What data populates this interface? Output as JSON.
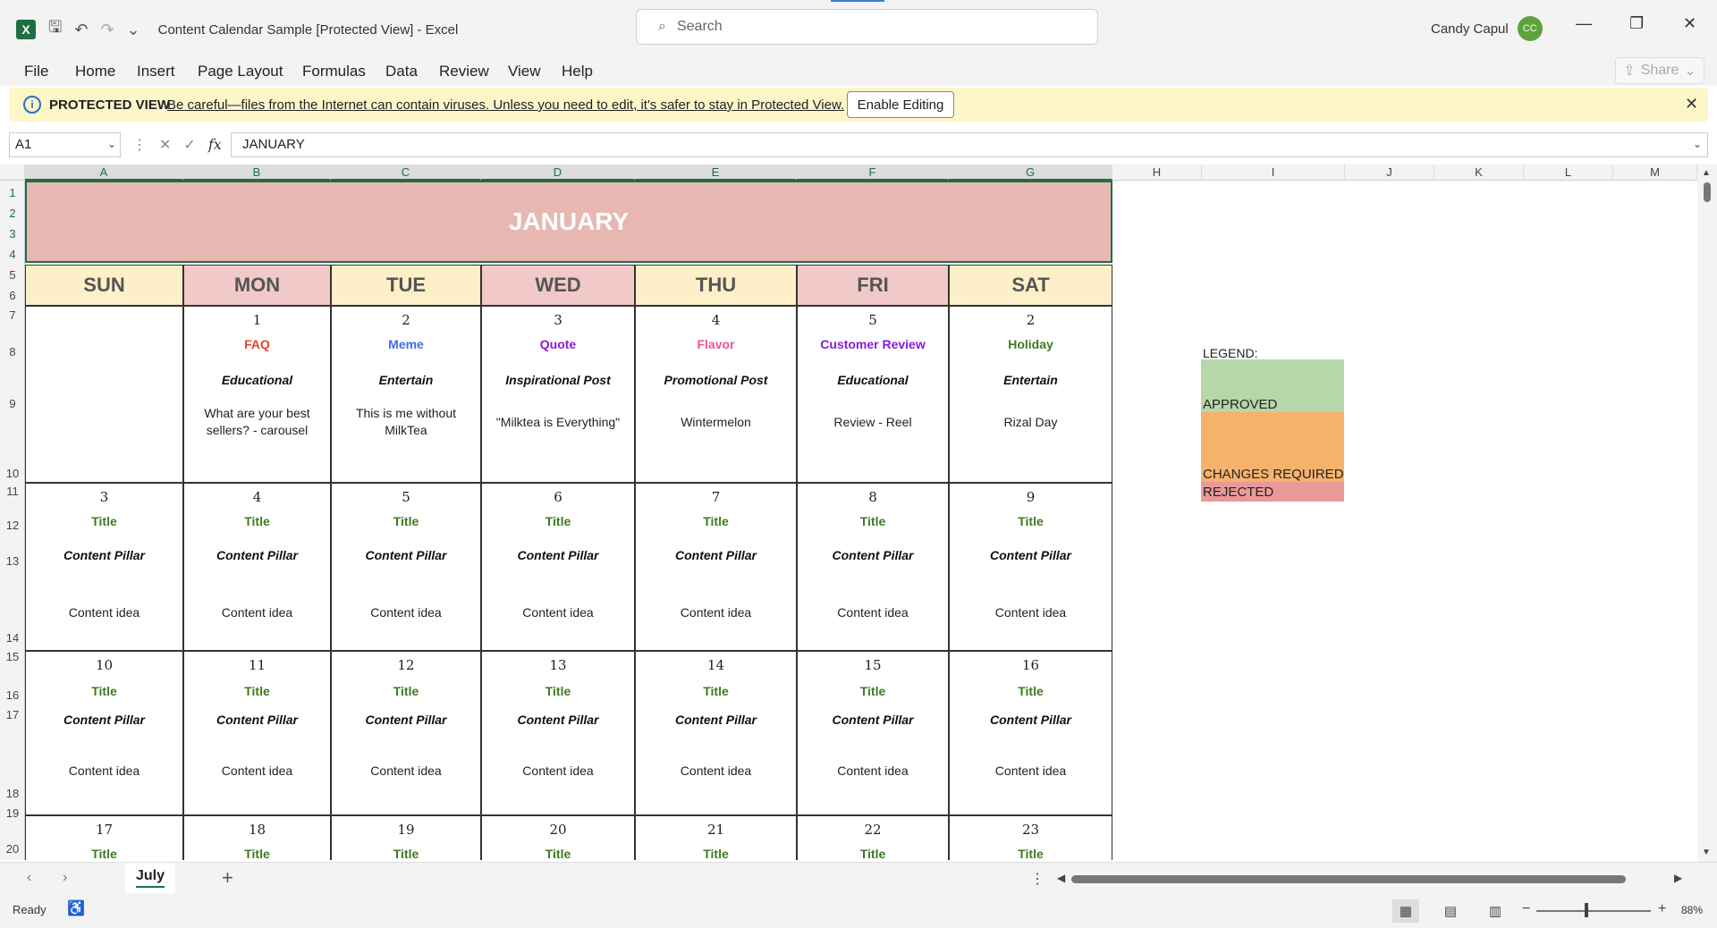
{
  "app": {
    "doc_title": "Content Calendar Sample  [Protected View]  -  Excel",
    "search_placeholder": "Search",
    "user_name": "Candy Capul",
    "user_initials": "CC"
  },
  "menu": {
    "items": [
      "File",
      "Home",
      "Insert",
      "Page Layout",
      "Formulas",
      "Data",
      "Review",
      "View",
      "Help"
    ],
    "share_label": "Share"
  },
  "protected_view": {
    "label": "PROTECTED VIEW",
    "message": "Be careful—files from the Internet can contain viruses. Unless you need to edit, it's safer to stay in Protected View.",
    "enable_label": "Enable Editing"
  },
  "formula_bar": {
    "name_box": "A1",
    "fx_label": "fx",
    "value": "JANUARY"
  },
  "columns": [
    "A",
    "B",
    "C",
    "D",
    "E",
    "F",
    "G",
    "H",
    "I",
    "J",
    "K",
    "L",
    "M"
  ],
  "rows": [
    "1",
    "2",
    "3",
    "4",
    "5",
    "6",
    "7",
    "8",
    "9",
    "10",
    "11",
    "12",
    "13",
    "14",
    "15",
    "16",
    "17",
    "18",
    "19",
    "20"
  ],
  "calendar": {
    "month": "JANUARY",
    "days": [
      "SUN",
      "MON",
      "TUE",
      "WED",
      "THU",
      "FRI",
      "SAT"
    ],
    "weeks": [
      [
        {
          "num": "",
          "title": "",
          "pillar": "",
          "idea": ""
        },
        {
          "num": "1",
          "title": "FAQ",
          "pillar": "Educational",
          "idea": "What are your best sellers? - carousel"
        },
        {
          "num": "2",
          "title": "Meme",
          "pillar": "Entertain",
          "idea": "This is me without MilkTea"
        },
        {
          "num": "3",
          "title": "Quote",
          "pillar": "Inspirational Post",
          "idea": "\"Milktea is Everything\""
        },
        {
          "num": "4",
          "title": "Flavor",
          "pillar": "Promotional Post",
          "idea": "Wintermelon"
        },
        {
          "num": "5",
          "title": "Customer Review",
          "pillar": "Educational",
          "idea": "Review - Reel"
        },
        {
          "num": "2",
          "title": "Holiday",
          "pillar": "Entertain",
          "idea": "Rizal Day"
        }
      ],
      [
        {
          "num": "3",
          "title": "Title",
          "pillar": "Content Pillar",
          "idea": "Content idea"
        },
        {
          "num": "4",
          "title": "Title",
          "pillar": "Content Pillar",
          "idea": "Content idea"
        },
        {
          "num": "5",
          "title": "Title",
          "pillar": "Content Pillar",
          "idea": "Content idea"
        },
        {
          "num": "6",
          "title": "Title",
          "pillar": "Content Pillar",
          "idea": "Content idea"
        },
        {
          "num": "7",
          "title": "Title",
          "pillar": "Content Pillar",
          "idea": "Content idea"
        },
        {
          "num": "8",
          "title": "Title",
          "pillar": "Content Pillar",
          "idea": "Content idea"
        },
        {
          "num": "9",
          "title": "Title",
          "pillar": "Content Pillar",
          "idea": "Content idea"
        }
      ],
      [
        {
          "num": "10",
          "title": "Title",
          "pillar": "Content Pillar",
          "idea": "Content idea"
        },
        {
          "num": "11",
          "title": "Title",
          "pillar": "Content Pillar",
          "idea": "Content idea"
        },
        {
          "num": "12",
          "title": "Title",
          "pillar": "Content Pillar",
          "idea": "Content idea"
        },
        {
          "num": "13",
          "title": "Title",
          "pillar": "Content Pillar",
          "idea": "Content idea"
        },
        {
          "num": "14",
          "title": "Title",
          "pillar": "Content Pillar",
          "idea": "Content idea"
        },
        {
          "num": "15",
          "title": "Title",
          "pillar": "Content Pillar",
          "idea": "Content idea"
        },
        {
          "num": "16",
          "title": "Title",
          "pillar": "Content Pillar",
          "idea": "Content idea"
        }
      ],
      [
        {
          "num": "17",
          "title": "Title",
          "pillar": "",
          "idea": ""
        },
        {
          "num": "18",
          "title": "Title",
          "pillar": "",
          "idea": ""
        },
        {
          "num": "19",
          "title": "Title",
          "pillar": "",
          "idea": ""
        },
        {
          "num": "20",
          "title": "Title",
          "pillar": "",
          "idea": ""
        },
        {
          "num": "21",
          "title": "Title",
          "pillar": "",
          "idea": ""
        },
        {
          "num": "22",
          "title": "Title",
          "pillar": "",
          "idea": ""
        },
        {
          "num": "23",
          "title": "Title",
          "pillar": "",
          "idea": ""
        }
      ]
    ]
  },
  "colors": {
    "banner": "#e6b8b1",
    "day_header_light": "#fdf0c8",
    "day_header_pink": "#f2c9c9",
    "week1_titles": [
      "#000000",
      "#e8412c",
      "#3b6fe0",
      "#8a1ae0",
      "#e8559b",
      "#8a1ae0",
      "#3f7a1f"
    ],
    "default_title": "#3f7a1f",
    "approved": "#b6d7a8",
    "changes_required": "#f6b26b",
    "rejected": "#ea9999"
  },
  "legend": {
    "label": "LEGEND:",
    "items": [
      "APPROVED",
      "CHANGES REQUIRED",
      "REJECTED"
    ]
  },
  "sheet_tabs": {
    "active": "July"
  },
  "status": {
    "ready": "Ready",
    "zoom": "88%"
  }
}
